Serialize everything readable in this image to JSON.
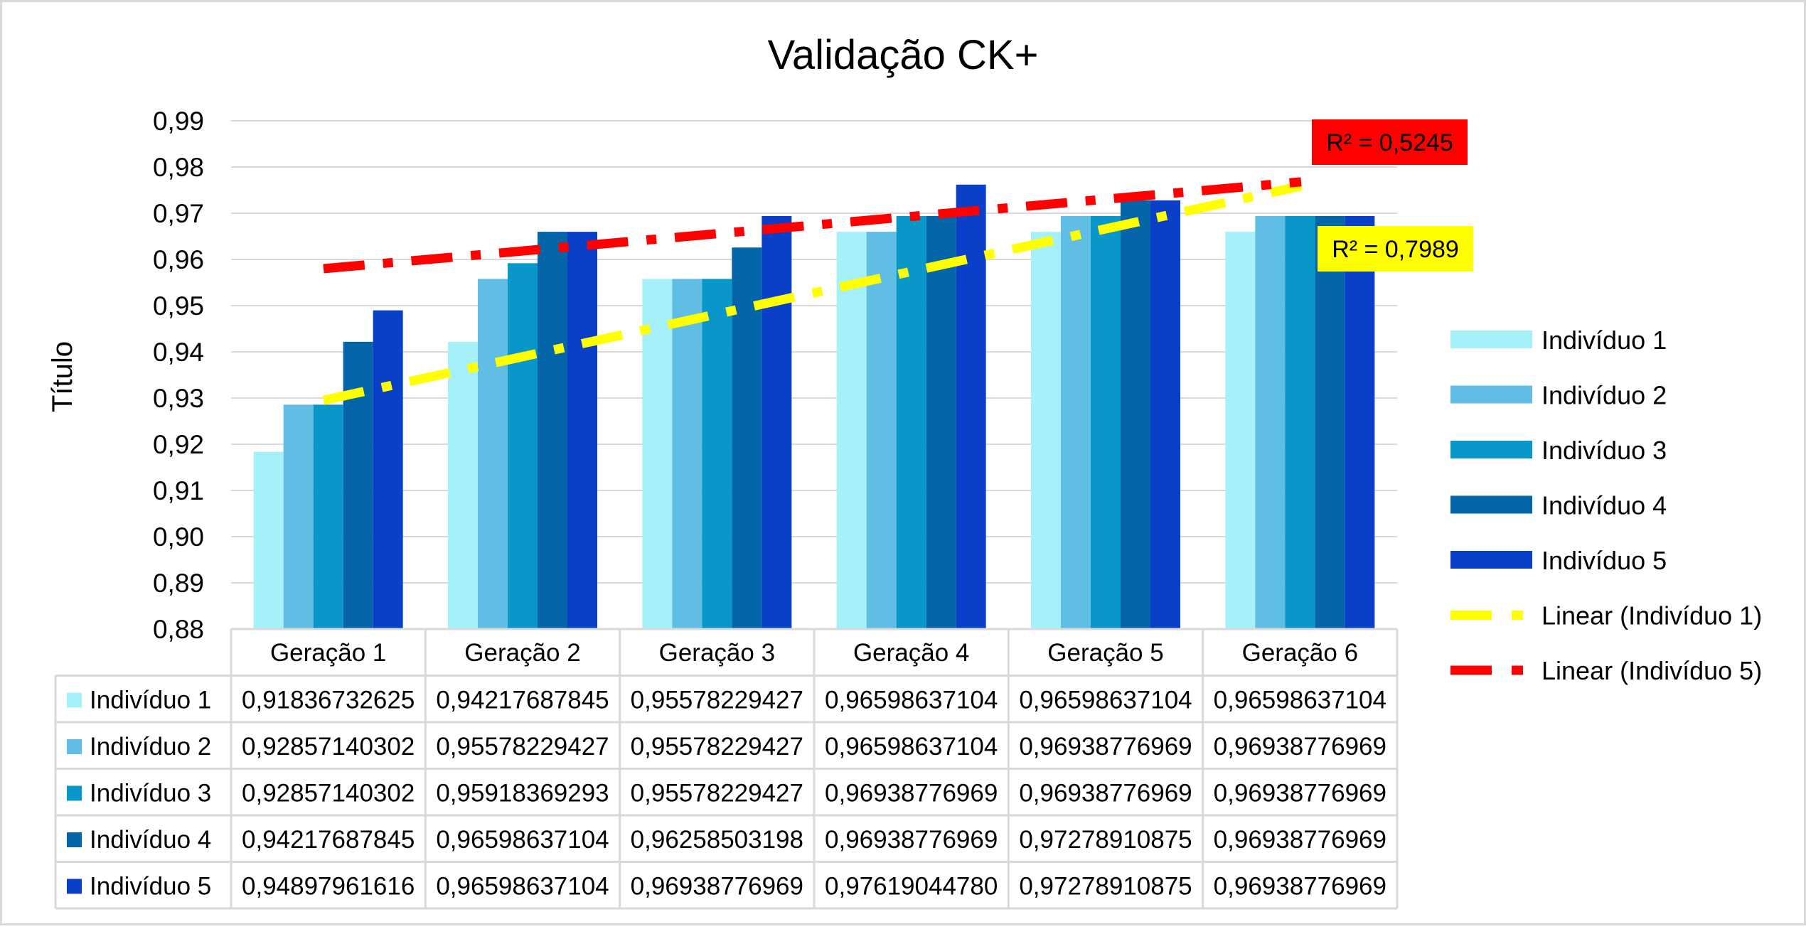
{
  "chart_data": {
    "type": "bar",
    "title": "Validação CK+",
    "xlabel": "",
    "ylabel": "Título",
    "ylim": [
      0.88,
      0.99
    ],
    "y_ticks": [
      "0,99",
      "0,98",
      "0,97",
      "0,96",
      "0,95",
      "0,94",
      "0,93",
      "0,92",
      "0,91",
      "0,90",
      "0,89",
      "0,88"
    ],
    "grid": true,
    "legend_position": "right",
    "data_table": true,
    "categories": [
      "Geração 1",
      "Geração 2",
      "Geração 3",
      "Geração 4",
      "Geração 5",
      "Geração 6"
    ],
    "series": [
      {
        "name": "Indivíduo 1",
        "color": "#A6F0FA",
        "values": [
          0.91836732625,
          0.94217687845,
          0.95578229427,
          0.96598637104,
          0.96598637104,
          0.96598637104
        ],
        "labels": [
          "0,91836732625",
          "0,94217687845",
          "0,95578229427",
          "0,96598637104",
          "0,96598637104",
          "0,96598637104"
        ]
      },
      {
        "name": "Indivíduo 2",
        "color": "#60BDE3",
        "values": [
          0.92857140302,
          0.95578229427,
          0.95578229427,
          0.96598637104,
          0.96938776969,
          0.96938776969
        ],
        "labels": [
          "0,92857140302",
          "0,95578229427",
          "0,95578229427",
          "0,96598637104",
          "0,96938776969",
          "0,96938776969"
        ]
      },
      {
        "name": "Indivíduo 3",
        "color": "#0897C8",
        "values": [
          0.92857140302,
          0.95918369293,
          0.95578229427,
          0.96938776969,
          0.96938776969,
          0.96938776969
        ],
        "labels": [
          "0,92857140302",
          "0,95918369293",
          "0,95578229427",
          "0,96938776969",
          "0,96938776969",
          "0,96938776969"
        ]
      },
      {
        "name": "Indivíduo 4",
        "color": "#0466A9",
        "values": [
          0.94217687845,
          0.96598637104,
          0.96258503198,
          0.96938776969,
          0.97278910875,
          0.96938776969
        ],
        "labels": [
          "0,94217687845",
          "0,96598637104",
          "0,96258503198",
          "0,96938776969",
          "0,97278910875",
          "0,96938776969"
        ]
      },
      {
        "name": "Indivíduo 5",
        "color": "#0A3FC8",
        "values": [
          0.94897961616,
          0.96598637104,
          0.96938776969,
          0.9761904478,
          0.97278910875,
          0.96938776969
        ],
        "labels": [
          "0,94897961616",
          "0,96598637104",
          "0,96938776969",
          "0,97619044780",
          "0,97278910875",
          "0,96938776969"
        ]
      }
    ],
    "trendlines": [
      {
        "name": "Linear (Indivíduo 1)",
        "series": "Indivíduo 1",
        "color": "#FFFF00",
        "r2_label": "R² = 0,7989",
        "start": 0.9295,
        "end": 0.9759
      },
      {
        "name": "Linear (Indivíduo 5)",
        "series": "Indivíduo 5",
        "color": "#FF0000",
        "r2_label": "R² = 0,5245",
        "start": 0.958,
        "end": 0.9768
      }
    ]
  }
}
